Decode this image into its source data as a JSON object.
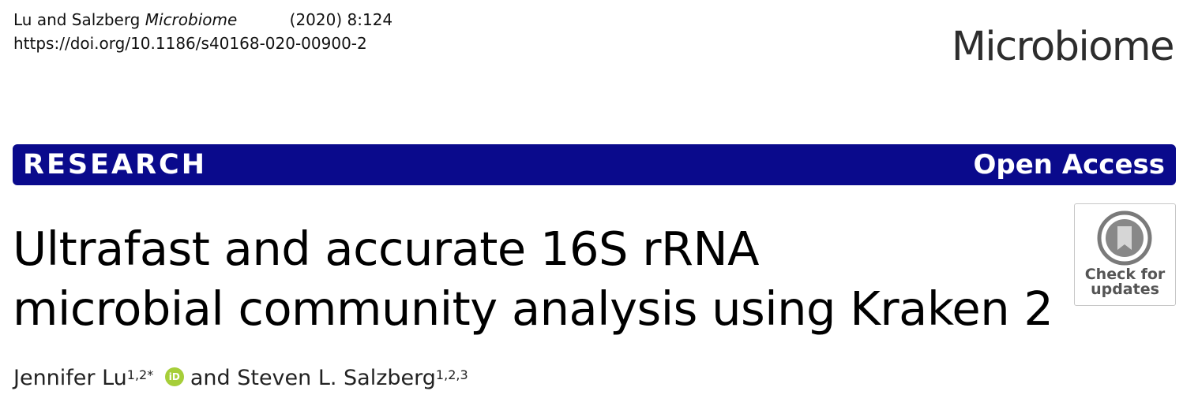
{
  "header": {
    "authors_short": "Lu and Salzberg",
    "journal_italic": "Microbiome",
    "year_volume": "(2020) 8:124",
    "doi": "https://doi.org/10.1186/s40168-020-00900-2",
    "journal_logo": "Microbiome"
  },
  "banner": {
    "left_label": "RESEARCH",
    "right_label": "Open Access",
    "color": "#0a0a8c"
  },
  "title": {
    "line1": "Ultrafast and accurate 16S rRNA",
    "line2": "microbial community analysis using Kraken 2"
  },
  "authors": {
    "author1": "Jennifer Lu",
    "author1_affil": "1,2*",
    "orcid_icon": "iD",
    "connector": "and",
    "author2": "Steven L. Salzberg",
    "author2_affil": "1,2,3"
  },
  "crossmark": {
    "icon": "crossmark-bookmark-icon",
    "line1": "Check for",
    "line2": "updates"
  }
}
